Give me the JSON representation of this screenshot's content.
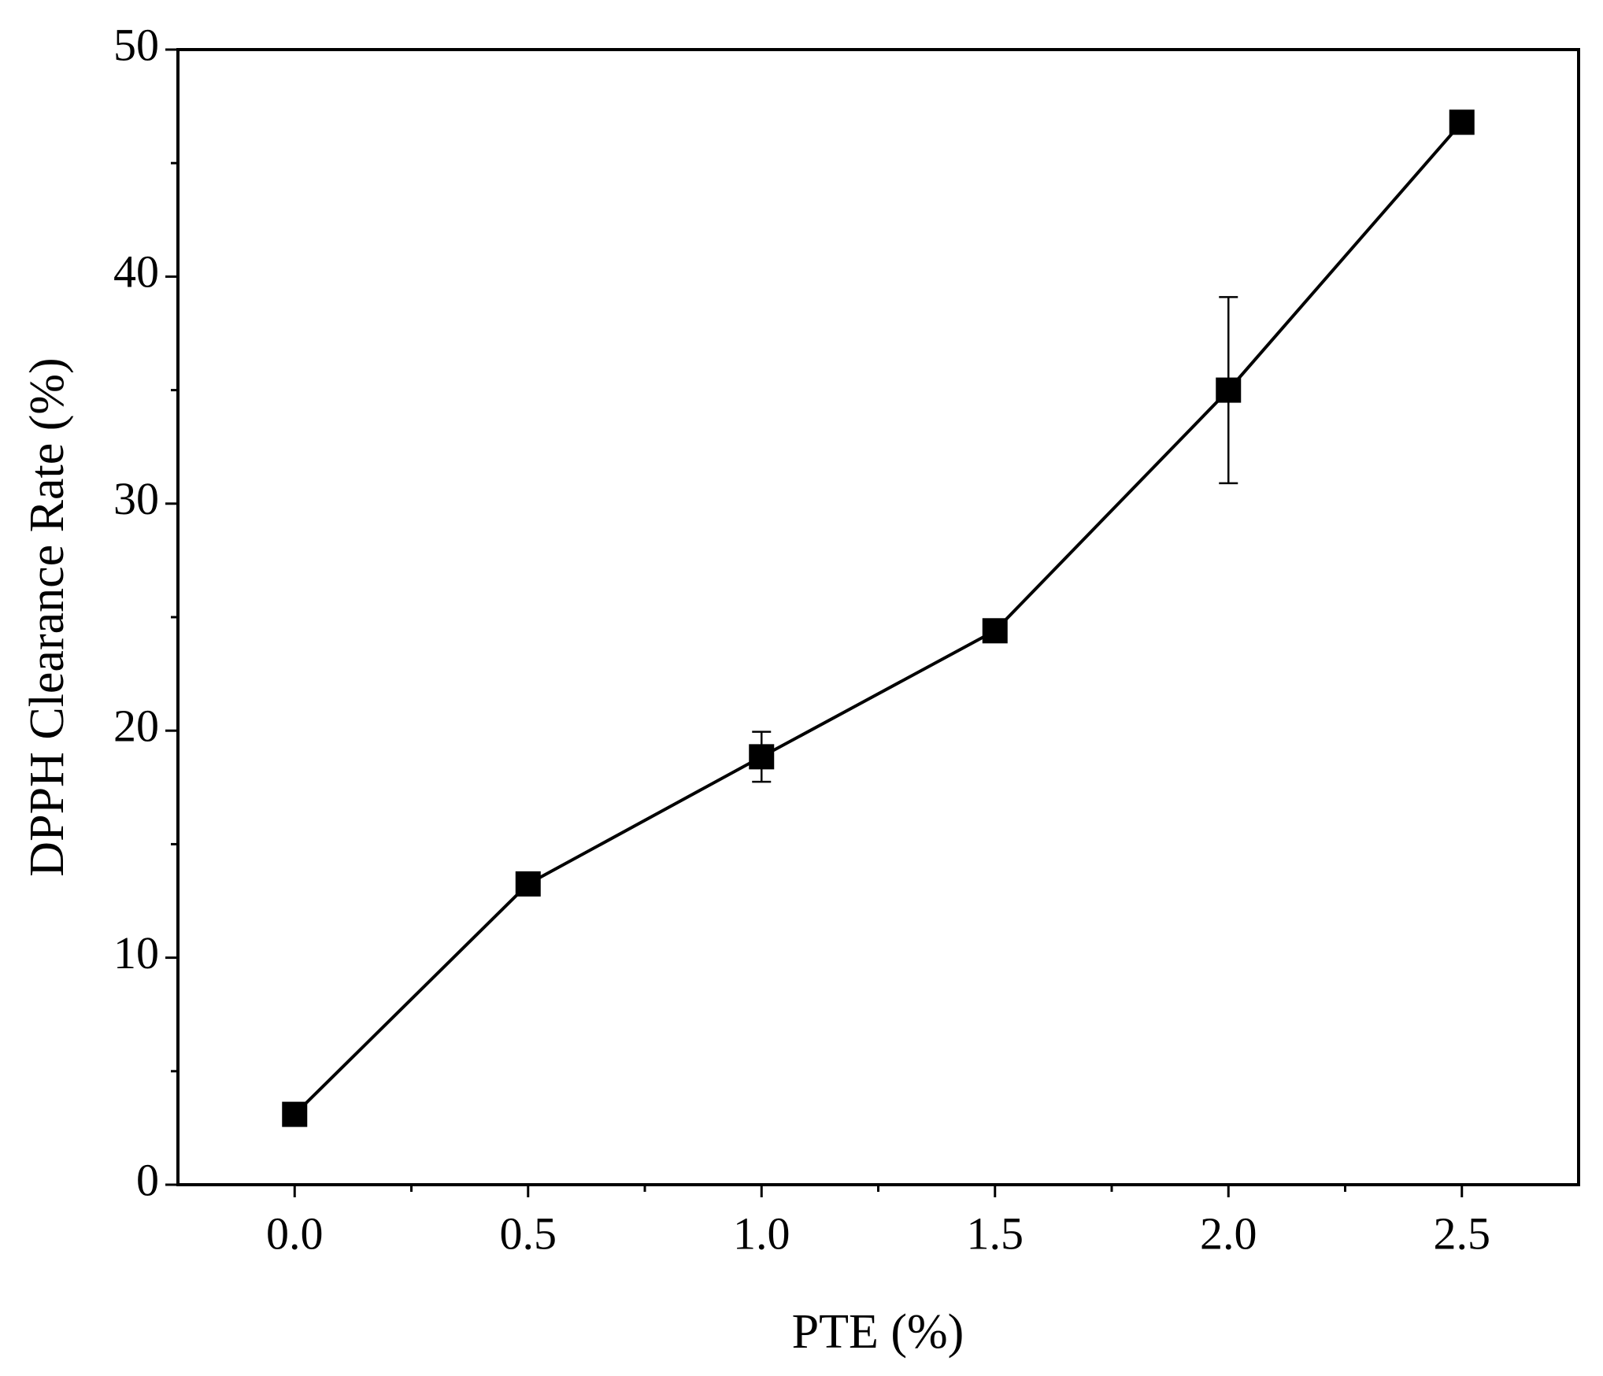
{
  "chart_data": {
    "type": "line",
    "x_label": "PTE (%)",
    "y_label": "DPPH Clearance Rate (%)",
    "x": [
      0,
      0.5,
      1,
      1.5,
      2,
      2.5
    ],
    "series": [
      {
        "color": "#000000",
        "values": [
          3.1,
          13.25,
          18.85,
          24.4,
          35.0,
          46.8
        ],
        "errors": [
          0.3,
          0.3,
          1.1,
          0.3,
          4.1,
          0.3
        ]
      }
    ],
    "xlim": [
      -0.25,
      2.75
    ],
    "xticks": [
      {
        "value": 0,
        "label": "0.0"
      },
      0.5,
      {
        "value": 1,
        "label": "1.0"
      },
      1.5,
      {
        "value": 2,
        "label": "2.0"
      },
      2.5
    ],
    "xminorticks": [
      0.25,
      0.75,
      1.25,
      1.75,
      2.25
    ],
    "ylim": [
      0,
      50
    ],
    "yticks": [
      0,
      10,
      20,
      30,
      40,
      50
    ],
    "yminorticks": [
      5,
      15,
      25,
      35,
      45
    ],
    "grid": false
  }
}
